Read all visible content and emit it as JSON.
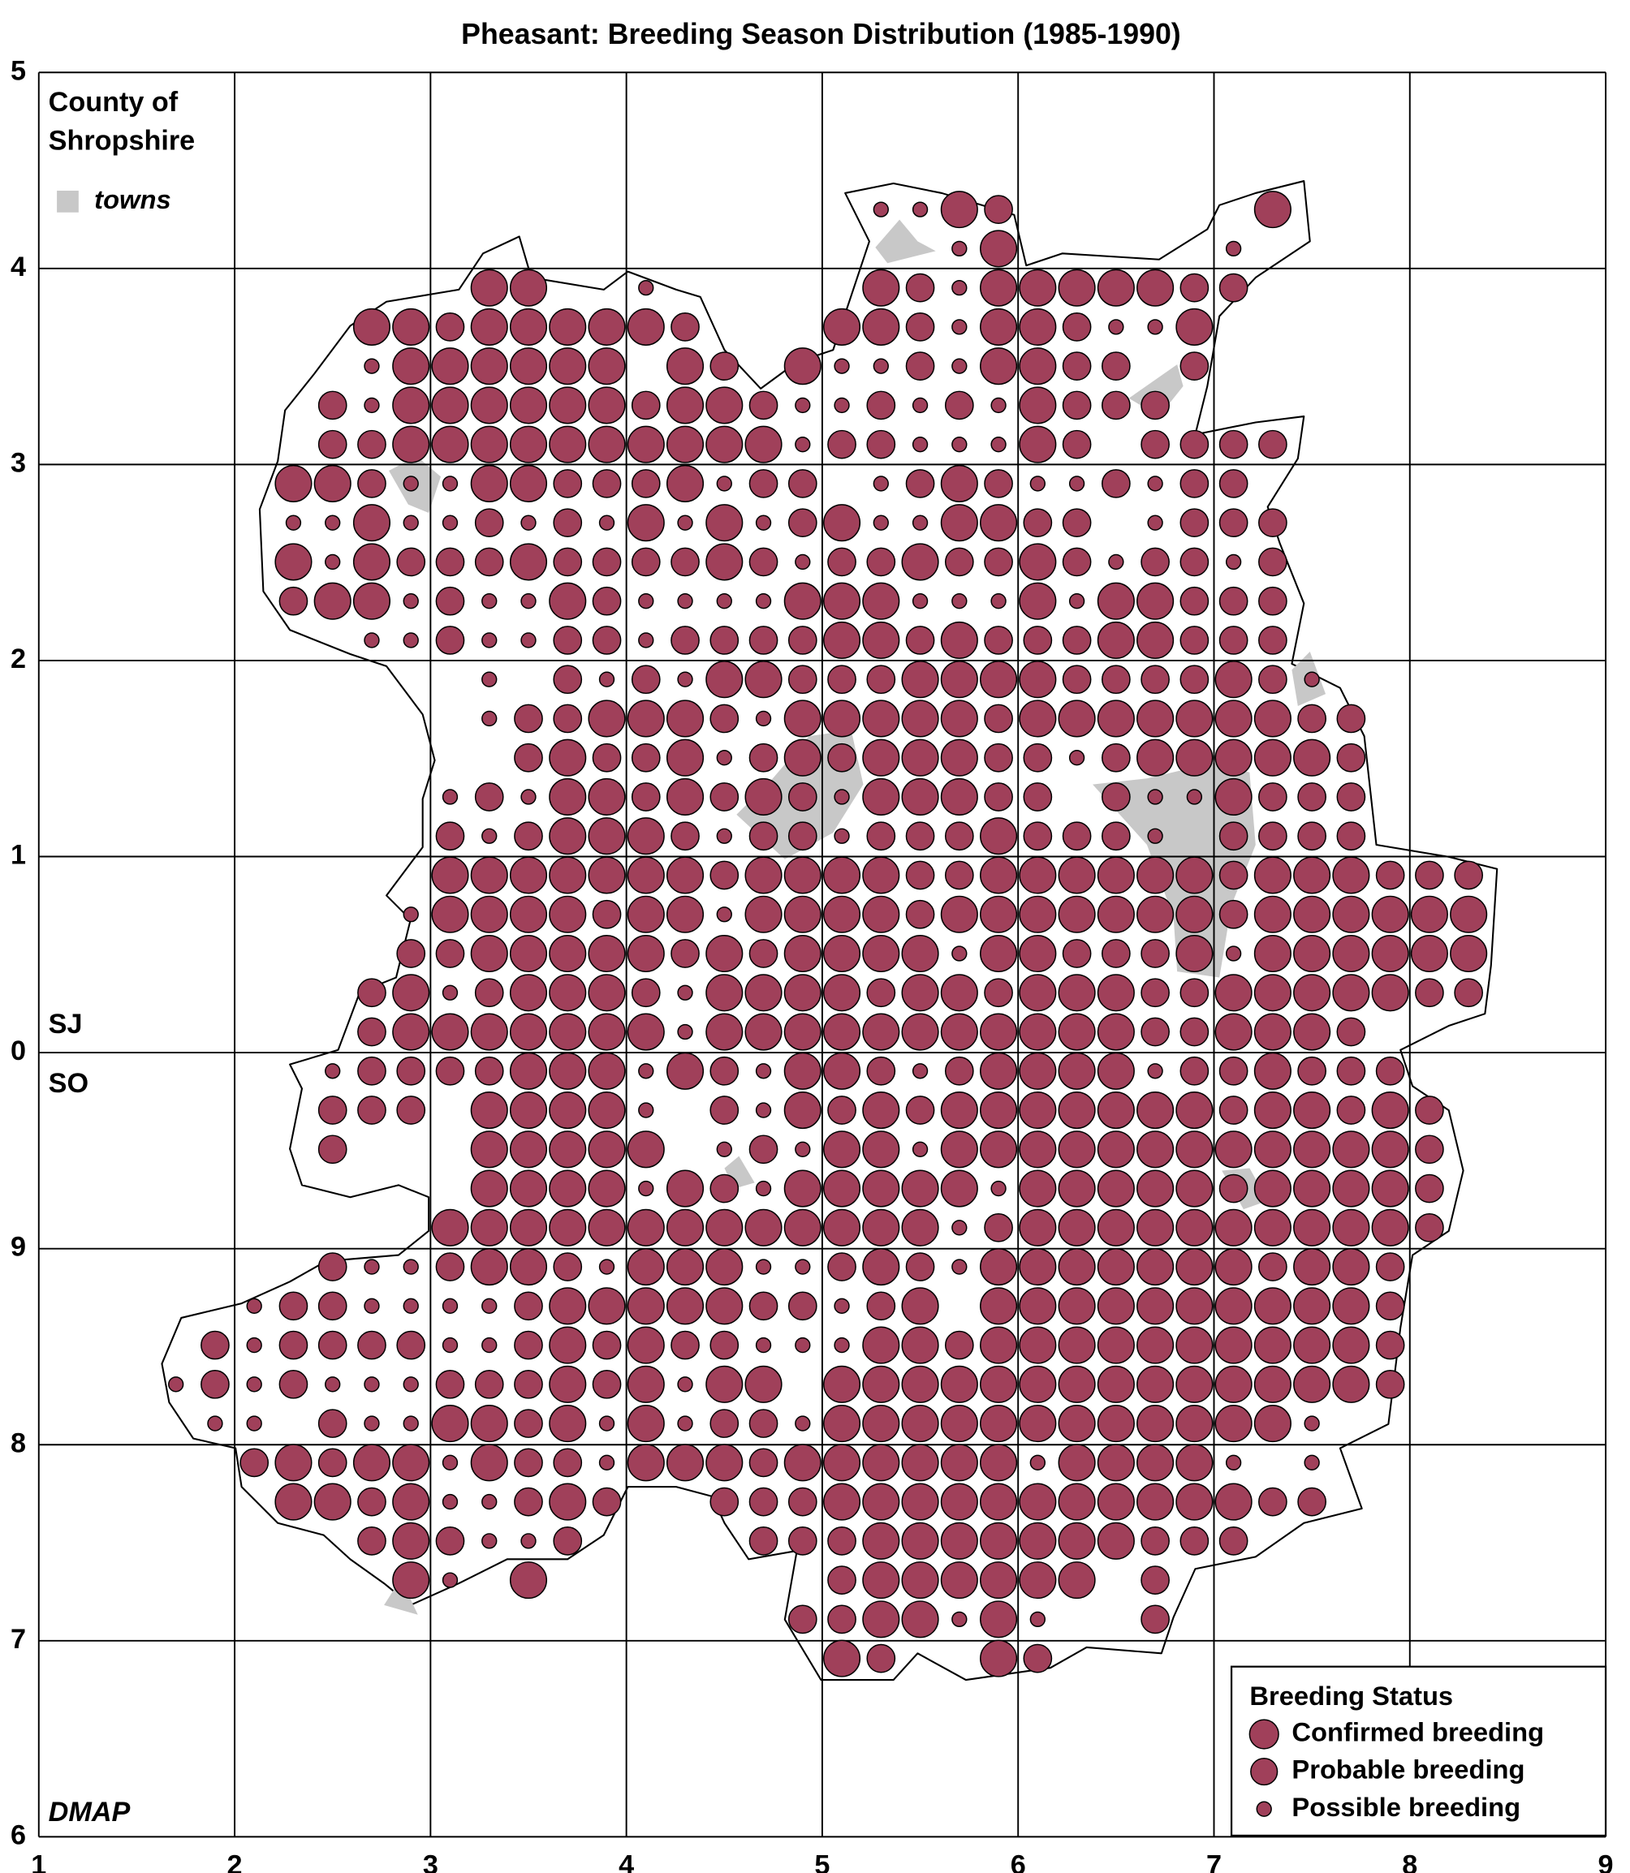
{
  "map": {
    "title": "Pheasant: Breeding Season Distribution (1985-1990)",
    "county_line1": "County of",
    "county_line2": "Shropshire",
    "towns_label": "towns",
    "grid_north": "SJ",
    "grid_south": "SO",
    "credit": "DMAP",
    "x_labels": [
      1,
      2,
      3,
      4,
      5,
      6,
      7,
      8,
      9
    ],
    "y_labels": [
      5,
      4,
      3,
      2,
      1,
      0,
      9,
      8,
      7,
      6
    ],
    "dot_color": "#a0405a",
    "town_color": "#c8c8c8",
    "legend": {
      "title": "Breeding Status",
      "items": [
        "Confirmed breeding",
        "Probable breeding",
        "Possible breeding"
      ]
    },
    "dots": [
      [
        0,
        0,
        0,
        0,
        0,
        0,
        0,
        0,
        0,
        0,
        0,
        0,
        0,
        0,
        0,
        0,
        0,
        0,
        1,
        1,
        3,
        2,
        0,
        0,
        0,
        0,
        0,
        0,
        3,
        0,
        0,
        0,
        0,
        0
      ],
      [
        0,
        0,
        0,
        0,
        0,
        0,
        0,
        0,
        0,
        0,
        0,
        0,
        0,
        0,
        0,
        0,
        0,
        0,
        0,
        0,
        1,
        3,
        0,
        0,
        0,
        0,
        0,
        1,
        0,
        0,
        0,
        0,
        0,
        0
      ],
      [
        0,
        0,
        0,
        0,
        0,
        0,
        0,
        0,
        3,
        3,
        0,
        0,
        1,
        0,
        0,
        0,
        0,
        0,
        3,
        2,
        1,
        3,
        3,
        3,
        3,
        3,
        2,
        2,
        0,
        0,
        0,
        0,
        0,
        0
      ],
      [
        0,
        0,
        0,
        0,
        0,
        3,
        3,
        2,
        3,
        3,
        3,
        3,
        3,
        2,
        0,
        0,
        0,
        3,
        3,
        2,
        1,
        3,
        3,
        2,
        1,
        1,
        3,
        0,
        0,
        0,
        0,
        0,
        0,
        0
      ],
      [
        0,
        0,
        0,
        0,
        0,
        1,
        3,
        3,
        3,
        3,
        3,
        3,
        0,
        3,
        2,
        0,
        3,
        1,
        1,
        2,
        1,
        3,
        3,
        2,
        2,
        0,
        2,
        0,
        0,
        0,
        0,
        0,
        0,
        0
      ],
      [
        0,
        0,
        0,
        0,
        2,
        1,
        3,
        3,
        3,
        3,
        3,
        3,
        2,
        3,
        3,
        2,
        1,
        1,
        2,
        1,
        2,
        1,
        3,
        2,
        2,
        2,
        0,
        0,
        0,
        0,
        0,
        0,
        0,
        0
      ],
      [
        0,
        0,
        0,
        0,
        2,
        2,
        3,
        3,
        3,
        3,
        3,
        3,
        3,
        3,
        3,
        3,
        1,
        2,
        2,
        1,
        1,
        1,
        3,
        2,
        0,
        2,
        2,
        2,
        2,
        0,
        0,
        0,
        0,
        0
      ],
      [
        0,
        0,
        0,
        3,
        3,
        2,
        1,
        1,
        3,
        3,
        2,
        2,
        2,
        3,
        1,
        2,
        2,
        0,
        1,
        2,
        3,
        2,
        1,
        1,
        2,
        1,
        2,
        2,
        0,
        0,
        0,
        0,
        0,
        0
      ],
      [
        0,
        0,
        0,
        1,
        1,
        3,
        1,
        1,
        2,
        1,
        2,
        1,
        3,
        1,
        3,
        1,
        2,
        3,
        1,
        1,
        3,
        3,
        2,
        2,
        0,
        1,
        2,
        2,
        2,
        0,
        0,
        0,
        0,
        0
      ],
      [
        0,
        0,
        0,
        3,
        1,
        3,
        2,
        2,
        2,
        3,
        2,
        2,
        2,
        2,
        3,
        2,
        1,
        2,
        2,
        3,
        2,
        2,
        3,
        2,
        1,
        2,
        2,
        1,
        2,
        0,
        0,
        0,
        0,
        0
      ],
      [
        0,
        0,
        0,
        2,
        3,
        3,
        1,
        2,
        1,
        1,
        3,
        2,
        1,
        1,
        1,
        1,
        3,
        3,
        3,
        1,
        1,
        1,
        3,
        1,
        3,
        3,
        2,
        2,
        2,
        0,
        0,
        0,
        0,
        0
      ],
      [
        0,
        0,
        0,
        0,
        0,
        1,
        1,
        2,
        1,
        1,
        2,
        2,
        1,
        2,
        2,
        2,
        2,
        3,
        3,
        2,
        3,
        2,
        2,
        2,
        3,
        3,
        2,
        2,
        2,
        0,
        0,
        0,
        0,
        0
      ],
      [
        0,
        0,
        0,
        0,
        0,
        0,
        0,
        0,
        1,
        0,
        2,
        1,
        2,
        1,
        3,
        3,
        2,
        2,
        2,
        3,
        3,
        3,
        3,
        2,
        2,
        2,
        2,
        3,
        2,
        1,
        0,
        0,
        0,
        0
      ],
      [
        0,
        0,
        0,
        0,
        0,
        0,
        0,
        0,
        1,
        2,
        2,
        3,
        3,
        3,
        2,
        1,
        3,
        3,
        3,
        3,
        3,
        2,
        3,
        3,
        3,
        3,
        3,
        3,
        3,
        2,
        2,
        0,
        0,
        0
      ],
      [
        0,
        0,
        0,
        0,
        0,
        0,
        0,
        0,
        0,
        2,
        3,
        2,
        2,
        3,
        1,
        2,
        3,
        2,
        3,
        3,
        3,
        2,
        2,
        1,
        2,
        3,
        3,
        3,
        3,
        3,
        2,
        0,
        0,
        0
      ],
      [
        0,
        0,
        0,
        0,
        0,
        0,
        0,
        1,
        2,
        1,
        3,
        3,
        2,
        3,
        2,
        3,
        2,
        1,
        3,
        3,
        3,
        2,
        2,
        0,
        2,
        1,
        1,
        3,
        2,
        2,
        2,
        0,
        0,
        0
      ],
      [
        0,
        0,
        0,
        0,
        0,
        0,
        0,
        2,
        1,
        2,
        3,
        3,
        3,
        2,
        1,
        2,
        2,
        1,
        2,
        2,
        2,
        3,
        2,
        2,
        2,
        1,
        0,
        2,
        2,
        2,
        2,
        0,
        0,
        0
      ],
      [
        0,
        0,
        0,
        0,
        0,
        0,
        0,
        3,
        3,
        3,
        3,
        3,
        3,
        3,
        2,
        3,
        3,
        3,
        3,
        2,
        2,
        3,
        3,
        3,
        3,
        3,
        3,
        2,
        3,
        3,
        3,
        2,
        2,
        2
      ],
      [
        0,
        0,
        0,
        0,
        0,
        0,
        1,
        3,
        3,
        3,
        3,
        2,
        3,
        3,
        1,
        3,
        3,
        3,
        3,
        2,
        3,
        3,
        3,
        3,
        3,
        3,
        3,
        2,
        3,
        3,
        3,
        3,
        3,
        3
      ],
      [
        0,
        0,
        0,
        0,
        0,
        0,
        2,
        2,
        3,
        3,
        3,
        3,
        3,
        2,
        3,
        2,
        3,
        3,
        3,
        3,
        1,
        3,
        3,
        2,
        2,
        2,
        3,
        1,
        3,
        3,
        3,
        3,
        3,
        3
      ],
      [
        0,
        0,
        0,
        0,
        0,
        2,
        3,
        1,
        2,
        3,
        3,
        3,
        2,
        1,
        3,
        3,
        3,
        3,
        2,
        3,
        3,
        2,
        3,
        3,
        3,
        2,
        2,
        3,
        3,
        3,
        3,
        3,
        2,
        2
      ],
      [
        0,
        0,
        0,
        0,
        0,
        2,
        3,
        3,
        3,
        3,
        3,
        3,
        3,
        1,
        3,
        3,
        3,
        3,
        3,
        3,
        3,
        3,
        3,
        3,
        3,
        2,
        2,
        3,
        3,
        3,
        2,
        0,
        0,
        0
      ],
      [
        0,
        0,
        0,
        0,
        1,
        2,
        2,
        2,
        2,
        3,
        3,
        3,
        1,
        3,
        2,
        1,
        3,
        3,
        2,
        1,
        2,
        3,
        3,
        3,
        3,
        1,
        2,
        2,
        3,
        2,
        2,
        2,
        0,
        0
      ],
      [
        0,
        0,
        0,
        0,
        2,
        2,
        2,
        0,
        3,
        3,
        3,
        3,
        1,
        0,
        2,
        1,
        3,
        2,
        3,
        2,
        3,
        3,
        3,
        3,
        3,
        3,
        3,
        2,
        3,
        3,
        2,
        3,
        2,
        0
      ],
      [
        0,
        0,
        0,
        0,
        2,
        0,
        0,
        0,
        3,
        3,
        3,
        3,
        3,
        0,
        1,
        2,
        1,
        3,
        3,
        1,
        3,
        3,
        3,
        3,
        3,
        3,
        3,
        3,
        3,
        3,
        3,
        3,
        2,
        0
      ],
      [
        0,
        0,
        0,
        0,
        0,
        0,
        0,
        0,
        3,
        3,
        3,
        3,
        1,
        3,
        2,
        1,
        3,
        3,
        3,
        3,
        3,
        1,
        3,
        3,
        3,
        3,
        3,
        2,
        3,
        3,
        3,
        3,
        2,
        0
      ],
      [
        0,
        0,
        0,
        0,
        0,
        0,
        0,
        3,
        3,
        3,
        3,
        3,
        3,
        3,
        3,
        3,
        3,
        3,
        3,
        3,
        1,
        2,
        3,
        3,
        3,
        3,
        3,
        3,
        3,
        3,
        3,
        3,
        2,
        0
      ],
      [
        0,
        0,
        0,
        0,
        2,
        1,
        1,
        2,
        3,
        3,
        2,
        1,
        3,
        3,
        3,
        1,
        1,
        2,
        3,
        2,
        1,
        3,
        3,
        3,
        3,
        3,
        3,
        3,
        2,
        3,
        3,
        2,
        0,
        0
      ],
      [
        0,
        0,
        1,
        2,
        2,
        1,
        1,
        1,
        1,
        2,
        3,
        3,
        3,
        3,
        3,
        2,
        2,
        1,
        2,
        3,
        0,
        3,
        3,
        3,
        3,
        3,
        3,
        3,
        3,
        3,
        3,
        2,
        0,
        0
      ],
      [
        0,
        2,
        1,
        2,
        2,
        2,
        2,
        1,
        1,
        2,
        3,
        2,
        3,
        2,
        2,
        1,
        1,
        1,
        3,
        3,
        2,
        3,
        3,
        3,
        3,
        3,
        3,
        3,
        3,
        3,
        3,
        2,
        0,
        0
      ],
      [
        1,
        2,
        1,
        2,
        1,
        1,
        1,
        2,
        2,
        2,
        3,
        2,
        3,
        1,
        3,
        3,
        0,
        3,
        3,
        3,
        3,
        3,
        3,
        3,
        3,
        3,
        3,
        3,
        3,
        3,
        3,
        2,
        0,
        0
      ],
      [
        0,
        1,
        1,
        0,
        2,
        1,
        1,
        3,
        3,
        2,
        3,
        1,
        3,
        1,
        2,
        2,
        1,
        3,
        3,
        3,
        3,
        3,
        3,
        3,
        3,
        3,
        3,
        3,
        3,
        1,
        0,
        0,
        0,
        0
      ],
      [
        0,
        0,
        2,
        3,
        2,
        3,
        3,
        1,
        3,
        2,
        2,
        1,
        3,
        3,
        3,
        2,
        3,
        3,
        3,
        3,
        3,
        3,
        1,
        3,
        3,
        3,
        3,
        1,
        0,
        1,
        0,
        0,
        0,
        0
      ],
      [
        0,
        0,
        0,
        3,
        3,
        2,
        3,
        1,
        1,
        2,
        3,
        2,
        0,
        0,
        2,
        2,
        2,
        3,
        3,
        3,
        3,
        3,
        3,
        3,
        3,
        3,
        3,
        3,
        2,
        2,
        0,
        0,
        0,
        0
      ],
      [
        0,
        0,
        0,
        0,
        0,
        2,
        3,
        2,
        1,
        1,
        2,
        0,
        0,
        0,
        0,
        2,
        2,
        2,
        3,
        3,
        3,
        3,
        3,
        3,
        3,
        2,
        2,
        2,
        0,
        0,
        0,
        0,
        0,
        0
      ],
      [
        0,
        0,
        0,
        0,
        0,
        0,
        3,
        1,
        0,
        3,
        0,
        0,
        0,
        0,
        0,
        0,
        0,
        2,
        3,
        3,
        3,
        3,
        3,
        3,
        0,
        2,
        0,
        0,
        0,
        0,
        0,
        0,
        0,
        0
      ],
      [
        0,
        0,
        0,
        0,
        0,
        0,
        0,
        0,
        0,
        0,
        0,
        0,
        0,
        0,
        0,
        0,
        2,
        2,
        3,
        3,
        1,
        3,
        1,
        0,
        0,
        2,
        0,
        0,
        0,
        0,
        0,
        0,
        0,
        0
      ],
      [
        0,
        0,
        0,
        0,
        0,
        0,
        0,
        0,
        0,
        0,
        0,
        0,
        0,
        0,
        0,
        0,
        0,
        3,
        2,
        0,
        0,
        3,
        2,
        0,
        0,
        0,
        0,
        0,
        0,
        0,
        0,
        0,
        0,
        0
      ]
    ]
  }
}
